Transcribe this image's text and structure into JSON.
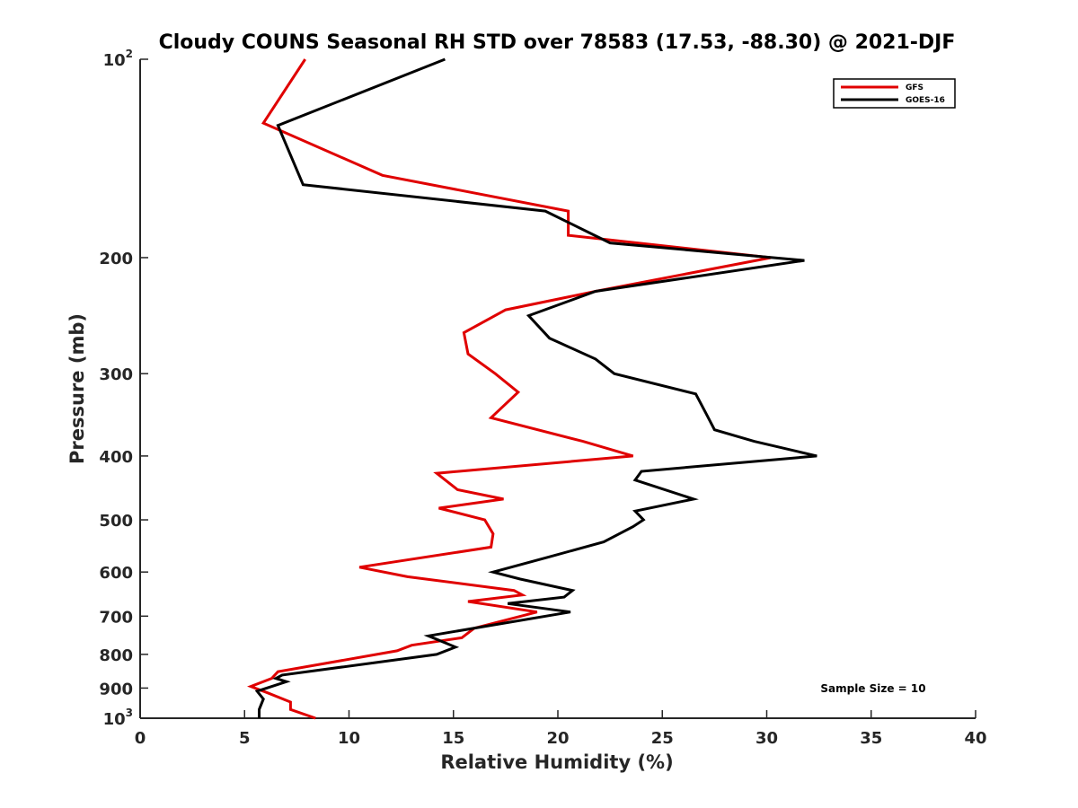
{
  "chart_data": {
    "type": "line",
    "title": "Cloudy COUNS Seasonal RH STD over 78583 (17.53, -88.30) @ 2021-DJF",
    "xlabel": "Relative Humidity (%)",
    "ylabel": "Pressure (mb)",
    "xlim": [
      0,
      40
    ],
    "ylim": [
      1000,
      100
    ],
    "yscale": "log",
    "xticks": [
      0,
      5,
      10,
      15,
      20,
      25,
      30,
      35,
      40
    ],
    "yticks": [
      {
        "value": 100,
        "base": "10",
        "exp": "2"
      },
      {
        "value": 200,
        "label": "200"
      },
      {
        "value": 300,
        "label": "300"
      },
      {
        "value": 400,
        "label": "400"
      },
      {
        "value": 500,
        "label": "500"
      },
      {
        "value": 600,
        "label": "600"
      },
      {
        "value": 700,
        "label": "700"
      },
      {
        "value": 800,
        "label": "800"
      },
      {
        "value": 900,
        "label": "900"
      },
      {
        "value": 1000,
        "base": "10",
        "exp": "3"
      }
    ],
    "legend_position": "top-right",
    "annotation": "Sample Size = 10",
    "series": [
      {
        "name": "GFS",
        "color": "#e00000",
        "points": [
          [
            7.9,
            100
          ],
          [
            5.9,
            125
          ],
          [
            11.6,
            150
          ],
          [
            20.5,
            170
          ],
          [
            20.5,
            185
          ],
          [
            30.2,
            200
          ],
          [
            21.8,
            225
          ],
          [
            17.5,
            240
          ],
          [
            15.5,
            260
          ],
          [
            15.7,
            280
          ],
          [
            17.0,
            300
          ],
          [
            18.1,
            320
          ],
          [
            16.8,
            350
          ],
          [
            21.2,
            380
          ],
          [
            23.6,
            400
          ],
          [
            14.2,
            425
          ],
          [
            15.2,
            450
          ],
          [
            17.4,
            465
          ],
          [
            14.3,
            480
          ],
          [
            16.5,
            500
          ],
          [
            16.9,
            525
          ],
          [
            16.8,
            550
          ],
          [
            10.5,
            590
          ],
          [
            12.8,
            610
          ],
          [
            17.9,
            640
          ],
          [
            18.3,
            650
          ],
          [
            15.7,
            665
          ],
          [
            19.0,
            690
          ],
          [
            16.0,
            730
          ],
          [
            15.4,
            755
          ],
          [
            13.0,
            775
          ],
          [
            12.3,
            790
          ],
          [
            6.6,
            850
          ],
          [
            6.3,
            870
          ],
          [
            5.3,
            895
          ],
          [
            6.1,
            915
          ],
          [
            7.2,
            945
          ],
          [
            7.2,
            970
          ],
          [
            8.4,
            1000
          ]
        ]
      },
      {
        "name": "GOES-16",
        "color": "#000000",
        "points": [
          [
            14.6,
            100
          ],
          [
            6.6,
            126
          ],
          [
            7.8,
            155
          ],
          [
            19.4,
            170
          ],
          [
            22.5,
            190
          ],
          [
            31.8,
            202
          ],
          [
            21.8,
            225
          ],
          [
            18.6,
            245
          ],
          [
            19.6,
            265
          ],
          [
            21.8,
            285
          ],
          [
            22.7,
            300
          ],
          [
            26.6,
            322
          ],
          [
            27.1,
            345
          ],
          [
            27.5,
            365
          ],
          [
            29.4,
            380
          ],
          [
            32.4,
            400
          ],
          [
            24.0,
            422
          ],
          [
            23.7,
            435
          ],
          [
            26.5,
            465
          ],
          [
            23.7,
            485
          ],
          [
            24.1,
            500
          ],
          [
            23.6,
            512
          ],
          [
            22.2,
            540
          ],
          [
            19.5,
            570
          ],
          [
            16.9,
            600
          ],
          [
            18.2,
            615
          ],
          [
            20.7,
            640
          ],
          [
            20.3,
            655
          ],
          [
            17.6,
            670
          ],
          [
            20.6,
            690
          ],
          [
            13.8,
            750
          ],
          [
            15.1,
            780
          ],
          [
            14.2,
            800
          ],
          [
            6.8,
            860
          ],
          [
            6.5,
            870
          ],
          [
            7.0,
            880
          ],
          [
            5.6,
            910
          ],
          [
            5.9,
            935
          ],
          [
            5.7,
            970
          ],
          [
            5.7,
            1000
          ]
        ]
      }
    ]
  }
}
